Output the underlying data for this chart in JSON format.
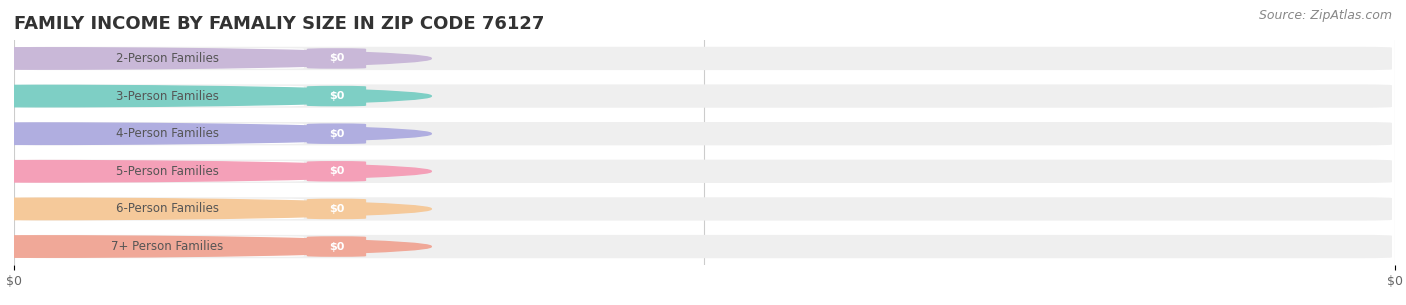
{
  "title": "FAMILY INCOME BY FAMALIY SIZE IN ZIP CODE 76127",
  "source": "Source: ZipAtlas.com",
  "categories": [
    "2-Person Families",
    "3-Person Families",
    "4-Person Families",
    "5-Person Families",
    "6-Person Families",
    "7+ Person Families"
  ],
  "values": [
    0,
    0,
    0,
    0,
    0,
    0
  ],
  "bar_colors": [
    "#c9b8d8",
    "#7ecfc5",
    "#b0aee0",
    "#f4a0b8",
    "#f5c99a",
    "#f0a898"
  ],
  "value_label": "$0",
  "background_color": "#ffffff",
  "bar_bg_color": "#efefef",
  "title_fontsize": 13,
  "source_fontsize": 9,
  "xtick_labels": [
    "$0",
    "$0"
  ],
  "xlim": [
    0,
    1
  ],
  "figsize": [
    14.06,
    3.05
  ],
  "dpi": 100
}
